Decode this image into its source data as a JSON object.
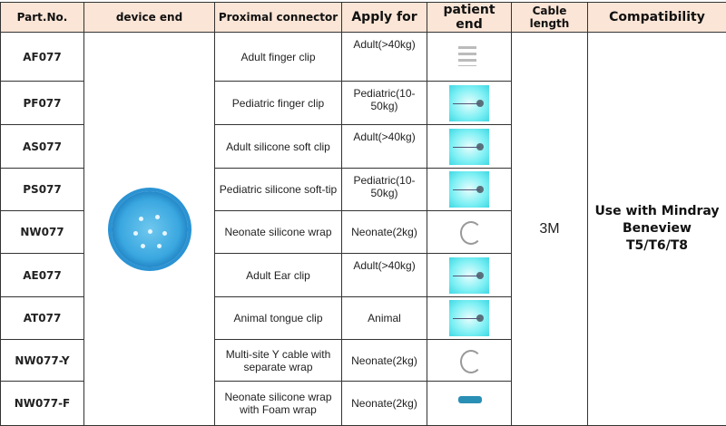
{
  "headers": [
    "Part.No.",
    "device end",
    "Proximal connector",
    "Apply for",
    "patient end",
    "Cable length",
    "Compatibility"
  ],
  "rows": [
    {
      "part": "AF077",
      "connector": "Adult finger clip",
      "apply": "Adult(>40kg)",
      "image": "gray"
    },
    {
      "part": "PF077",
      "connector": "Pediatric finger clip",
      "apply": "Pediatric(10-50kg)",
      "image": "cyan"
    },
    {
      "part": "AS077",
      "connector": "Adult silicone soft clip",
      "apply": "Adult(>40kg)",
      "image": "cyan"
    },
    {
      "part": "PS077",
      "connector": "Pediatric silicone soft-tip",
      "apply": "Pediatric(10-50kg)",
      "image": "cyan"
    },
    {
      "part": "NW077",
      "connector": "Neonate silicone wrap",
      "apply": "Neonate(2kg)",
      "image": "wire"
    },
    {
      "part": "AE077",
      "connector": "Adult Ear clip",
      "apply": "Adult(>40kg)",
      "image": "cyan"
    },
    {
      "part": "AT077",
      "connector": "Animal tongue clip",
      "apply": "Animal",
      "image": "cyan"
    },
    {
      "part": "NW077-Y",
      "connector": "Multi-site Y cable with separate wrap",
      "apply": "Neonate(2kg)",
      "image": "wire"
    },
    {
      "part": "NW077-F",
      "connector": "Neonate silicone wrap with Foam wrap",
      "apply": "Neonate(2kg)",
      "image": "probe"
    }
  ],
  "cable_length": "3M",
  "compatibility": "Use with Mindray Beneview T5/T6/T8",
  "colors": {
    "header_bg": "#fbe5d6",
    "connector_blue": "#3aa7e0"
  }
}
